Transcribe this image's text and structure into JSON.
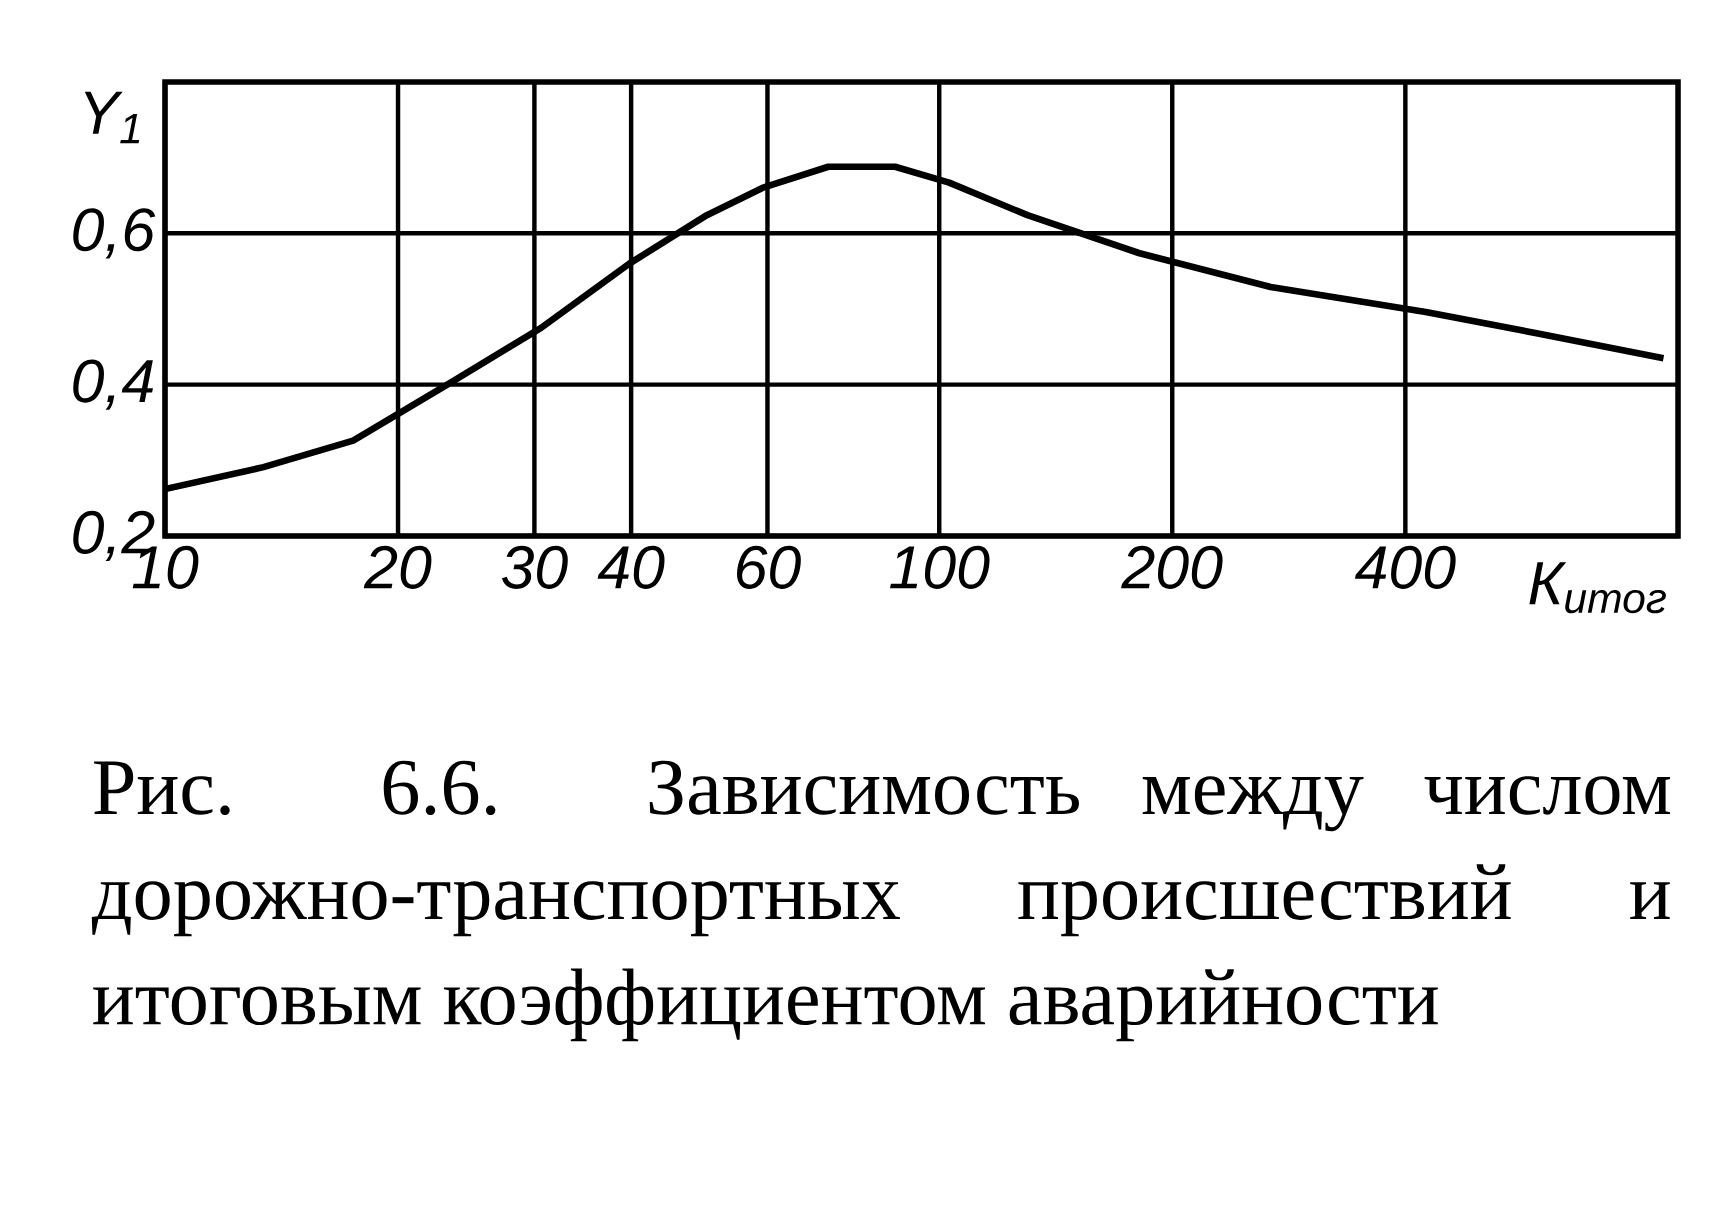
{
  "chart_data": {
    "type": "line",
    "xlabel": "К$_{итог}$",
    "ylabel": "Y$_{1}$",
    "log": "x",
    "grid": true,
    "color": "#000000",
    "xlim": [
      10,
      900
    ],
    "ylim": [
      0.2,
      0.8
    ],
    "xticks": [
      10,
      20,
      30,
      40,
      60,
      100,
      200,
      400
    ],
    "yticks": [
      {
        "value": 0.2,
        "label": "0,2"
      },
      {
        "value": 0.4,
        "label": "0,4"
      },
      {
        "value": 0.6,
        "label": "0,6"
      }
    ],
    "x": [
      10,
      13.4,
      17.5,
      23.5,
      30.6,
      39.8,
      50.1,
      59.1,
      71.9,
      87.7,
      103,
      130,
      181,
      268,
      425,
      591,
      862
    ],
    "values": [
      0.262,
      0.291,
      0.326,
      0.404,
      0.475,
      0.56,
      0.624,
      0.66,
      0.688,
      0.688,
      0.667,
      0.624,
      0.574,
      0.529,
      0.496,
      0.468,
      0.435
    ],
    "annotations": [
      "Рис. 6.6. Зависимость между числом дорожно-транспортных происшествий и итоговым коэффициентом аварийности"
    ]
  }
}
